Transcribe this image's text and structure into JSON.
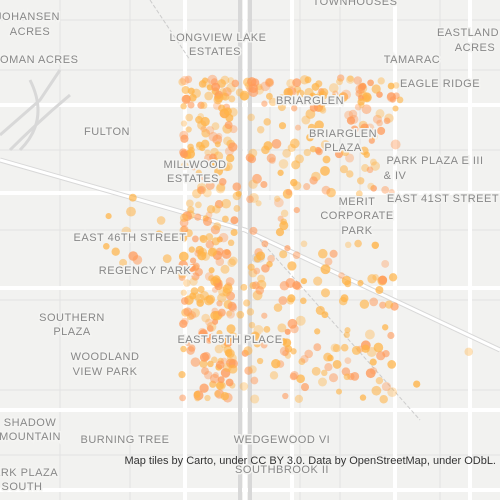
{
  "labels": [
    "JOHANSEN",
    "ACRES",
    "TOWNHOUSES",
    "LONGVIEW LAKE",
    "ESTATES",
    "EASTLAND",
    "ACRES",
    "ROMAN ACRES",
    "TAMARAC",
    "EAGLE RIDGE",
    "BRIARGLEN",
    "FULTON",
    "BRIARGLEN",
    "PLAZA",
    "MILLWOOD",
    "ESTATES",
    "PARK PLAZA E III",
    "& IV",
    "EAST 41ST STREET",
    "MERIT",
    "CORPORATE",
    "PARK",
    "EAST 46TH STREET",
    "REGENCY PARK",
    "SOUTHERN",
    "PLAZA",
    "EAST 55TH PLACE",
    "WOODLAND",
    "VIEW PARK",
    "SHADOW",
    "MOUNTAIN",
    "BURNING TREE",
    "WEDGEWOOD VI",
    "SOUTHBROOK II",
    "PARK PLAZA",
    "SOUTH"
  ],
  "attribution": "Map tiles by Carto, under CC BY 3.0. Data by OpenStreetMap, under ODbL."
}
